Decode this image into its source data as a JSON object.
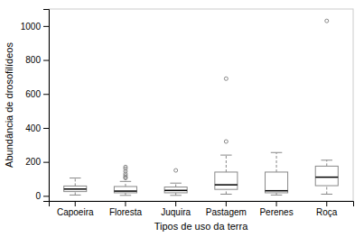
{
  "chart_data": {
    "type": "box",
    "categories": [
      "Capoeira",
      "Floresta",
      "Juquira",
      "Pastagem",
      "Perenes",
      "Roça"
    ],
    "xlabel": "Tipos de uso da terra",
    "ylabel": "Abundância de drosofilídeos",
    "ylim": [
      -30,
      1100
    ],
    "yticks": [
      0,
      200,
      400,
      600,
      800,
      1000
    ],
    "color": "#888888",
    "boxes": [
      {
        "q1": 25,
        "median": 40,
        "q3": 58,
        "whislo": 5,
        "whishi": 105,
        "fliers": []
      },
      {
        "q1": 18,
        "median": 28,
        "q3": 55,
        "whislo": 3,
        "whishi": 85,
        "fliers": [
          105,
          110,
          120,
          130,
          145,
          160,
          170
        ]
      },
      {
        "q1": 18,
        "median": 32,
        "q3": 52,
        "whislo": 3,
        "whishi": 75,
        "fliers": [
          150
        ]
      },
      {
        "q1": 38,
        "median": 65,
        "q3": 140,
        "whislo": 10,
        "whishi": 240,
        "fliers": [
          320,
          690
        ]
      },
      {
        "q1": 18,
        "median": 30,
        "q3": 140,
        "whislo": 5,
        "whishi": 255,
        "fliers": []
      },
      {
        "q1": 60,
        "median": 110,
        "q3": 175,
        "whislo": 10,
        "whishi": 210,
        "fliers": [
          1030
        ]
      }
    ]
  }
}
